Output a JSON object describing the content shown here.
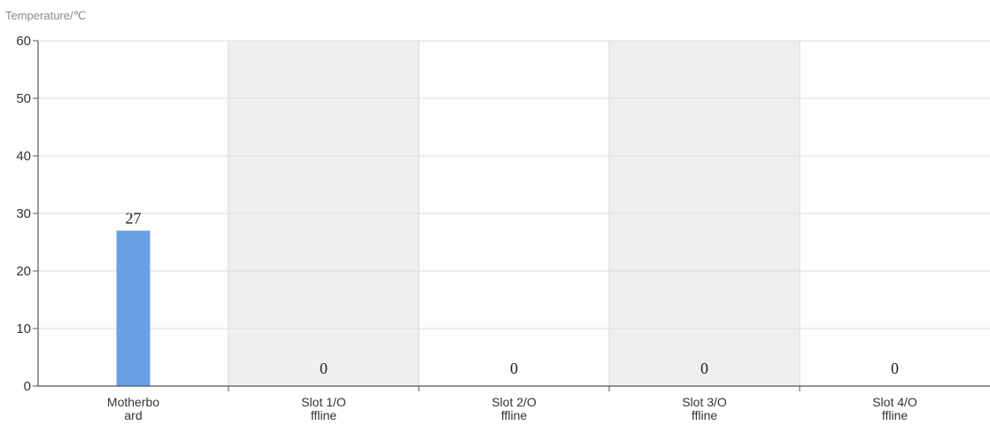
{
  "chart_data": {
    "type": "bar",
    "title": "",
    "xlabel": "",
    "ylabel": "Temperature/℃",
    "ylim": [
      0,
      60
    ],
    "yticks": [
      0,
      10,
      20,
      30,
      40,
      50,
      60
    ],
    "categories": [
      [
        "Motherbo",
        "ard"
      ],
      [
        "Slot 1/O",
        "ffline"
      ],
      [
        "Slot 2/O",
        "ffline"
      ],
      [
        "Slot 3/O",
        "ffline"
      ],
      [
        "Slot 4/O",
        "ffline"
      ]
    ],
    "series": [
      {
        "values": [
          27,
          0,
          0,
          0,
          0
        ],
        "color": "#6a9fe2"
      }
    ],
    "data_labels": [
      "27",
      "0",
      "0",
      "0",
      "0"
    ],
    "grid": true,
    "band_shading": "alternating",
    "band_color": "#efefef",
    "grid_color": "#dddddd",
    "axis_color": "#555555"
  }
}
